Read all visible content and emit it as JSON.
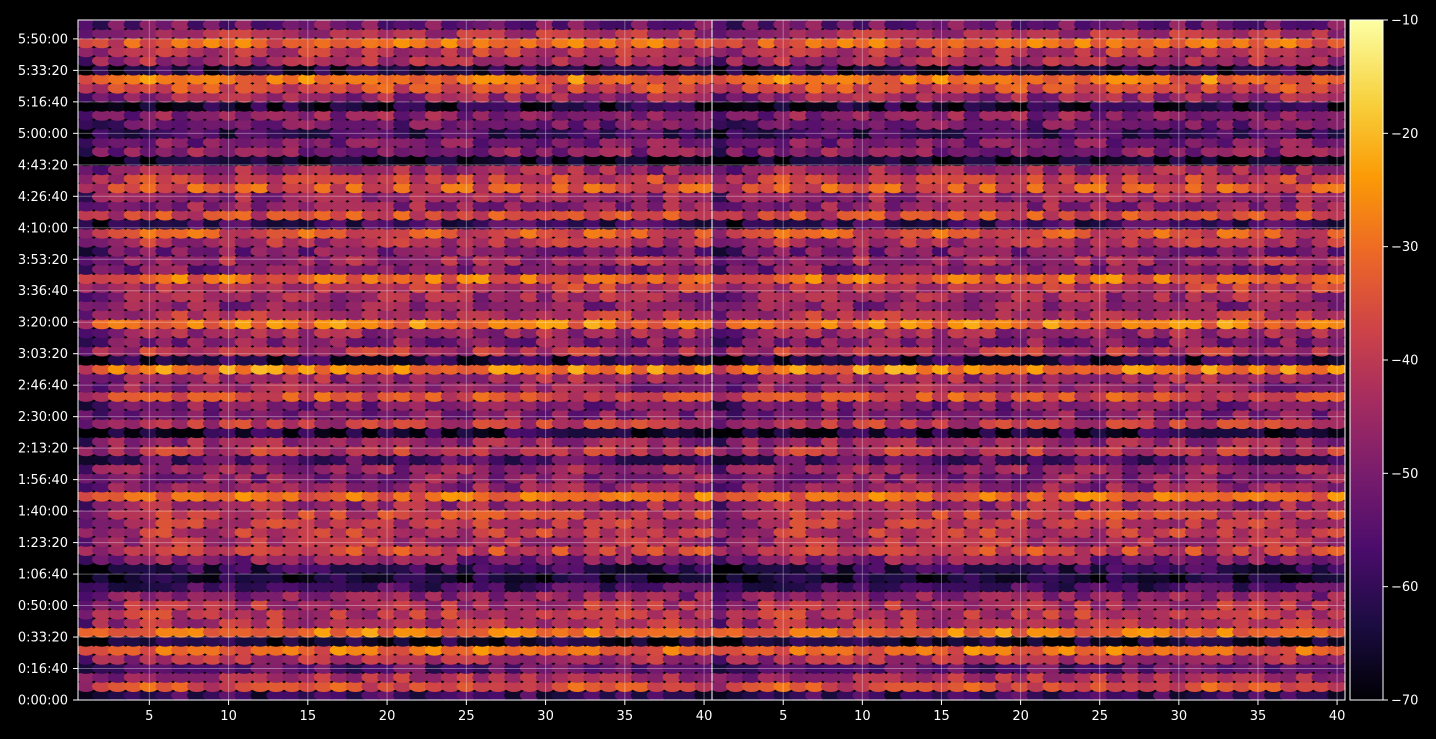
{
  "chart_data": [
    {
      "type": "heatmap",
      "panel": "left",
      "title": "",
      "xlabel": "",
      "ylabel": "",
      "x_range": [
        1,
        40
      ],
      "x_ticks": [
        5,
        10,
        15,
        20,
        25,
        30,
        35,
        40
      ],
      "y_range_seconds": [
        0,
        21600
      ],
      "y_tick_seconds": [
        0,
        1000,
        2000,
        3000,
        4000,
        5000,
        6000,
        7000,
        8000,
        9000,
        10000,
        11000,
        12000,
        13000,
        14000,
        15000,
        16000,
        17000,
        18000,
        19000,
        20000,
        21000
      ],
      "y_tick_labels": [
        "0:00:00",
        "0:16:40",
        "0:33:20",
        "0:50:00",
        "1:06:40",
        "1:23:20",
        "1:40:00",
        "1:56:40",
        "2:13:20",
        "2:30:00",
        "2:46:40",
        "3:03:20",
        "3:20:00",
        "3:36:40",
        "3:53:20",
        "4:10:00",
        "4:26:40",
        "4:43:20",
        "5:00:00",
        "5:16:40",
        "5:33:20",
        "5:50:00"
      ],
      "grid": true,
      "colormap": "inferno",
      "approx_hot_rows_seconds": [
        420,
        1520,
        2260,
        4700,
        5900,
        6460,
        9580,
        10500,
        12080,
        13440,
        14800,
        15440,
        16220,
        19580,
        20760
      ],
      "approx_cold_rows_seconds": [
        160,
        880,
        1840,
        3500,
        4000,
        4260,
        7580,
        8620,
        10700,
        15180,
        17160,
        18060,
        19000,
        20080
      ]
    },
    {
      "type": "heatmap",
      "panel": "right",
      "title": "",
      "xlabel": "",
      "ylabel": "",
      "x_range": [
        1,
        40
      ],
      "x_ticks": [
        5,
        10,
        15,
        20,
        25,
        30,
        35,
        40
      ],
      "y_range_seconds": [
        0,
        21600
      ],
      "grid": true,
      "colormap": "inferno"
    }
  ],
  "colorbar": {
    "range": [
      -70,
      -10
    ],
    "ticks": [
      "−10",
      "−20",
      "−30",
      "−40",
      "−50",
      "−60",
      "−70"
    ],
    "colors": [
      "#000004",
      "#1b0c41",
      "#4a0c6b",
      "#781c6d",
      "#a52c60",
      "#cf4446",
      "#ed6925",
      "#fb9b06",
      "#f7d13d",
      "#fcffa4"
    ]
  }
}
